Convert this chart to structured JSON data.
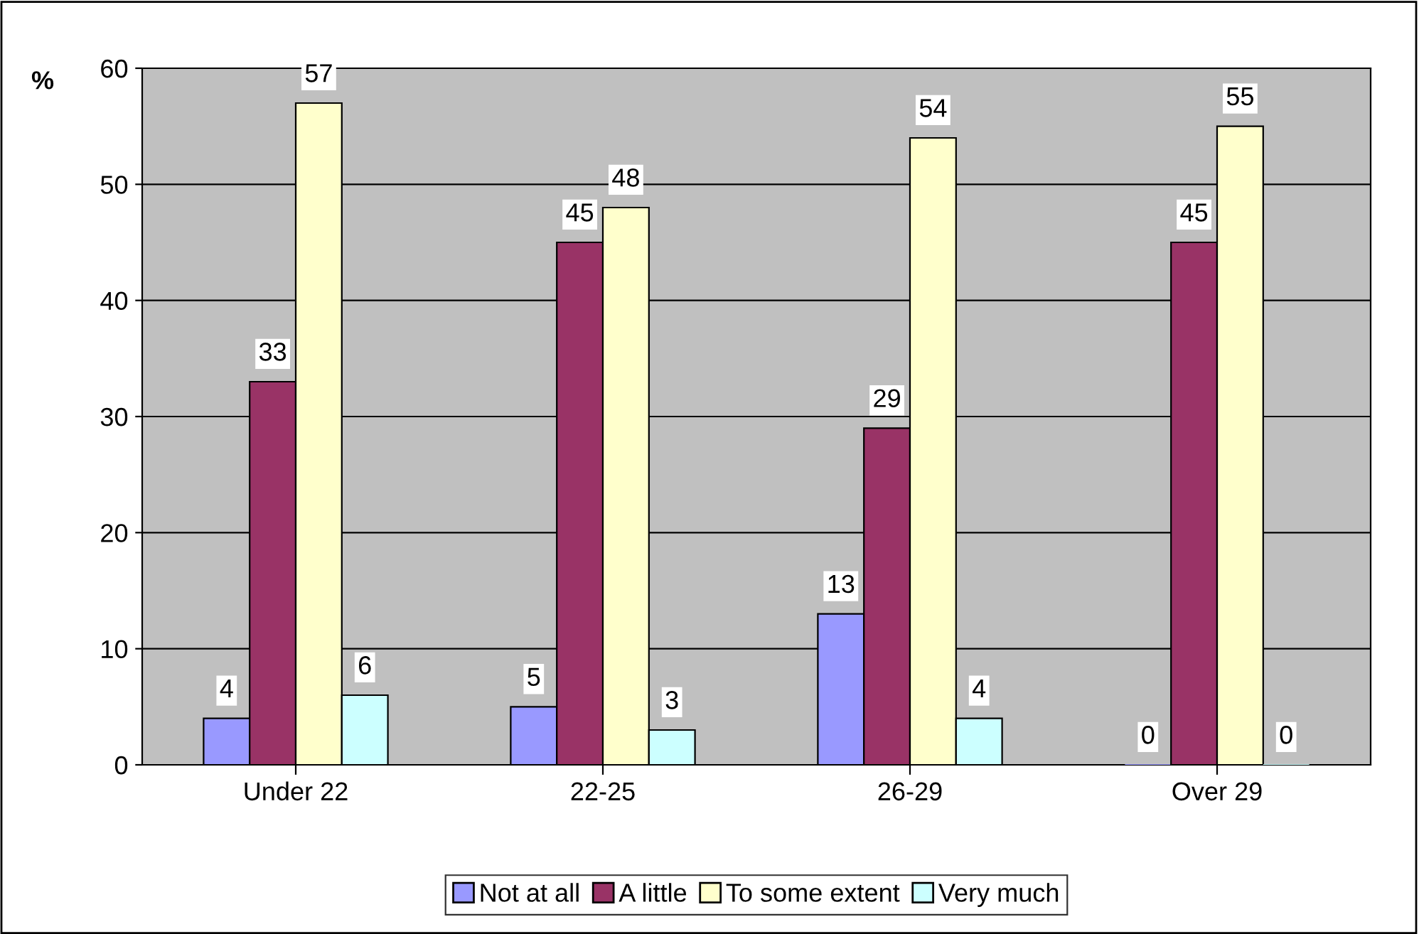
{
  "chart_data": {
    "type": "bar",
    "ylabel": "%",
    "categories": [
      "Under 22",
      "22-25",
      "26-29",
      "Over 29"
    ],
    "series": [
      {
        "name": "Not at all",
        "color": "#9999ff",
        "values": [
          4,
          5,
          13,
          0
        ]
      },
      {
        "name": "A little",
        "color": "#993366",
        "values": [
          33,
          45,
          29,
          45
        ]
      },
      {
        "name": "To some extent",
        "color": "#ffffcc",
        "values": [
          57,
          48,
          54,
          55
        ]
      },
      {
        "name": "Very much",
        "color": "#ccffff",
        "values": [
          6,
          3,
          4,
          0
        ]
      }
    ],
    "ylim": [
      0,
      60
    ],
    "yticks": [
      0,
      10,
      20,
      30,
      40,
      50,
      60
    ],
    "grid": "y",
    "legend": "bottom",
    "data_labels": true
  }
}
